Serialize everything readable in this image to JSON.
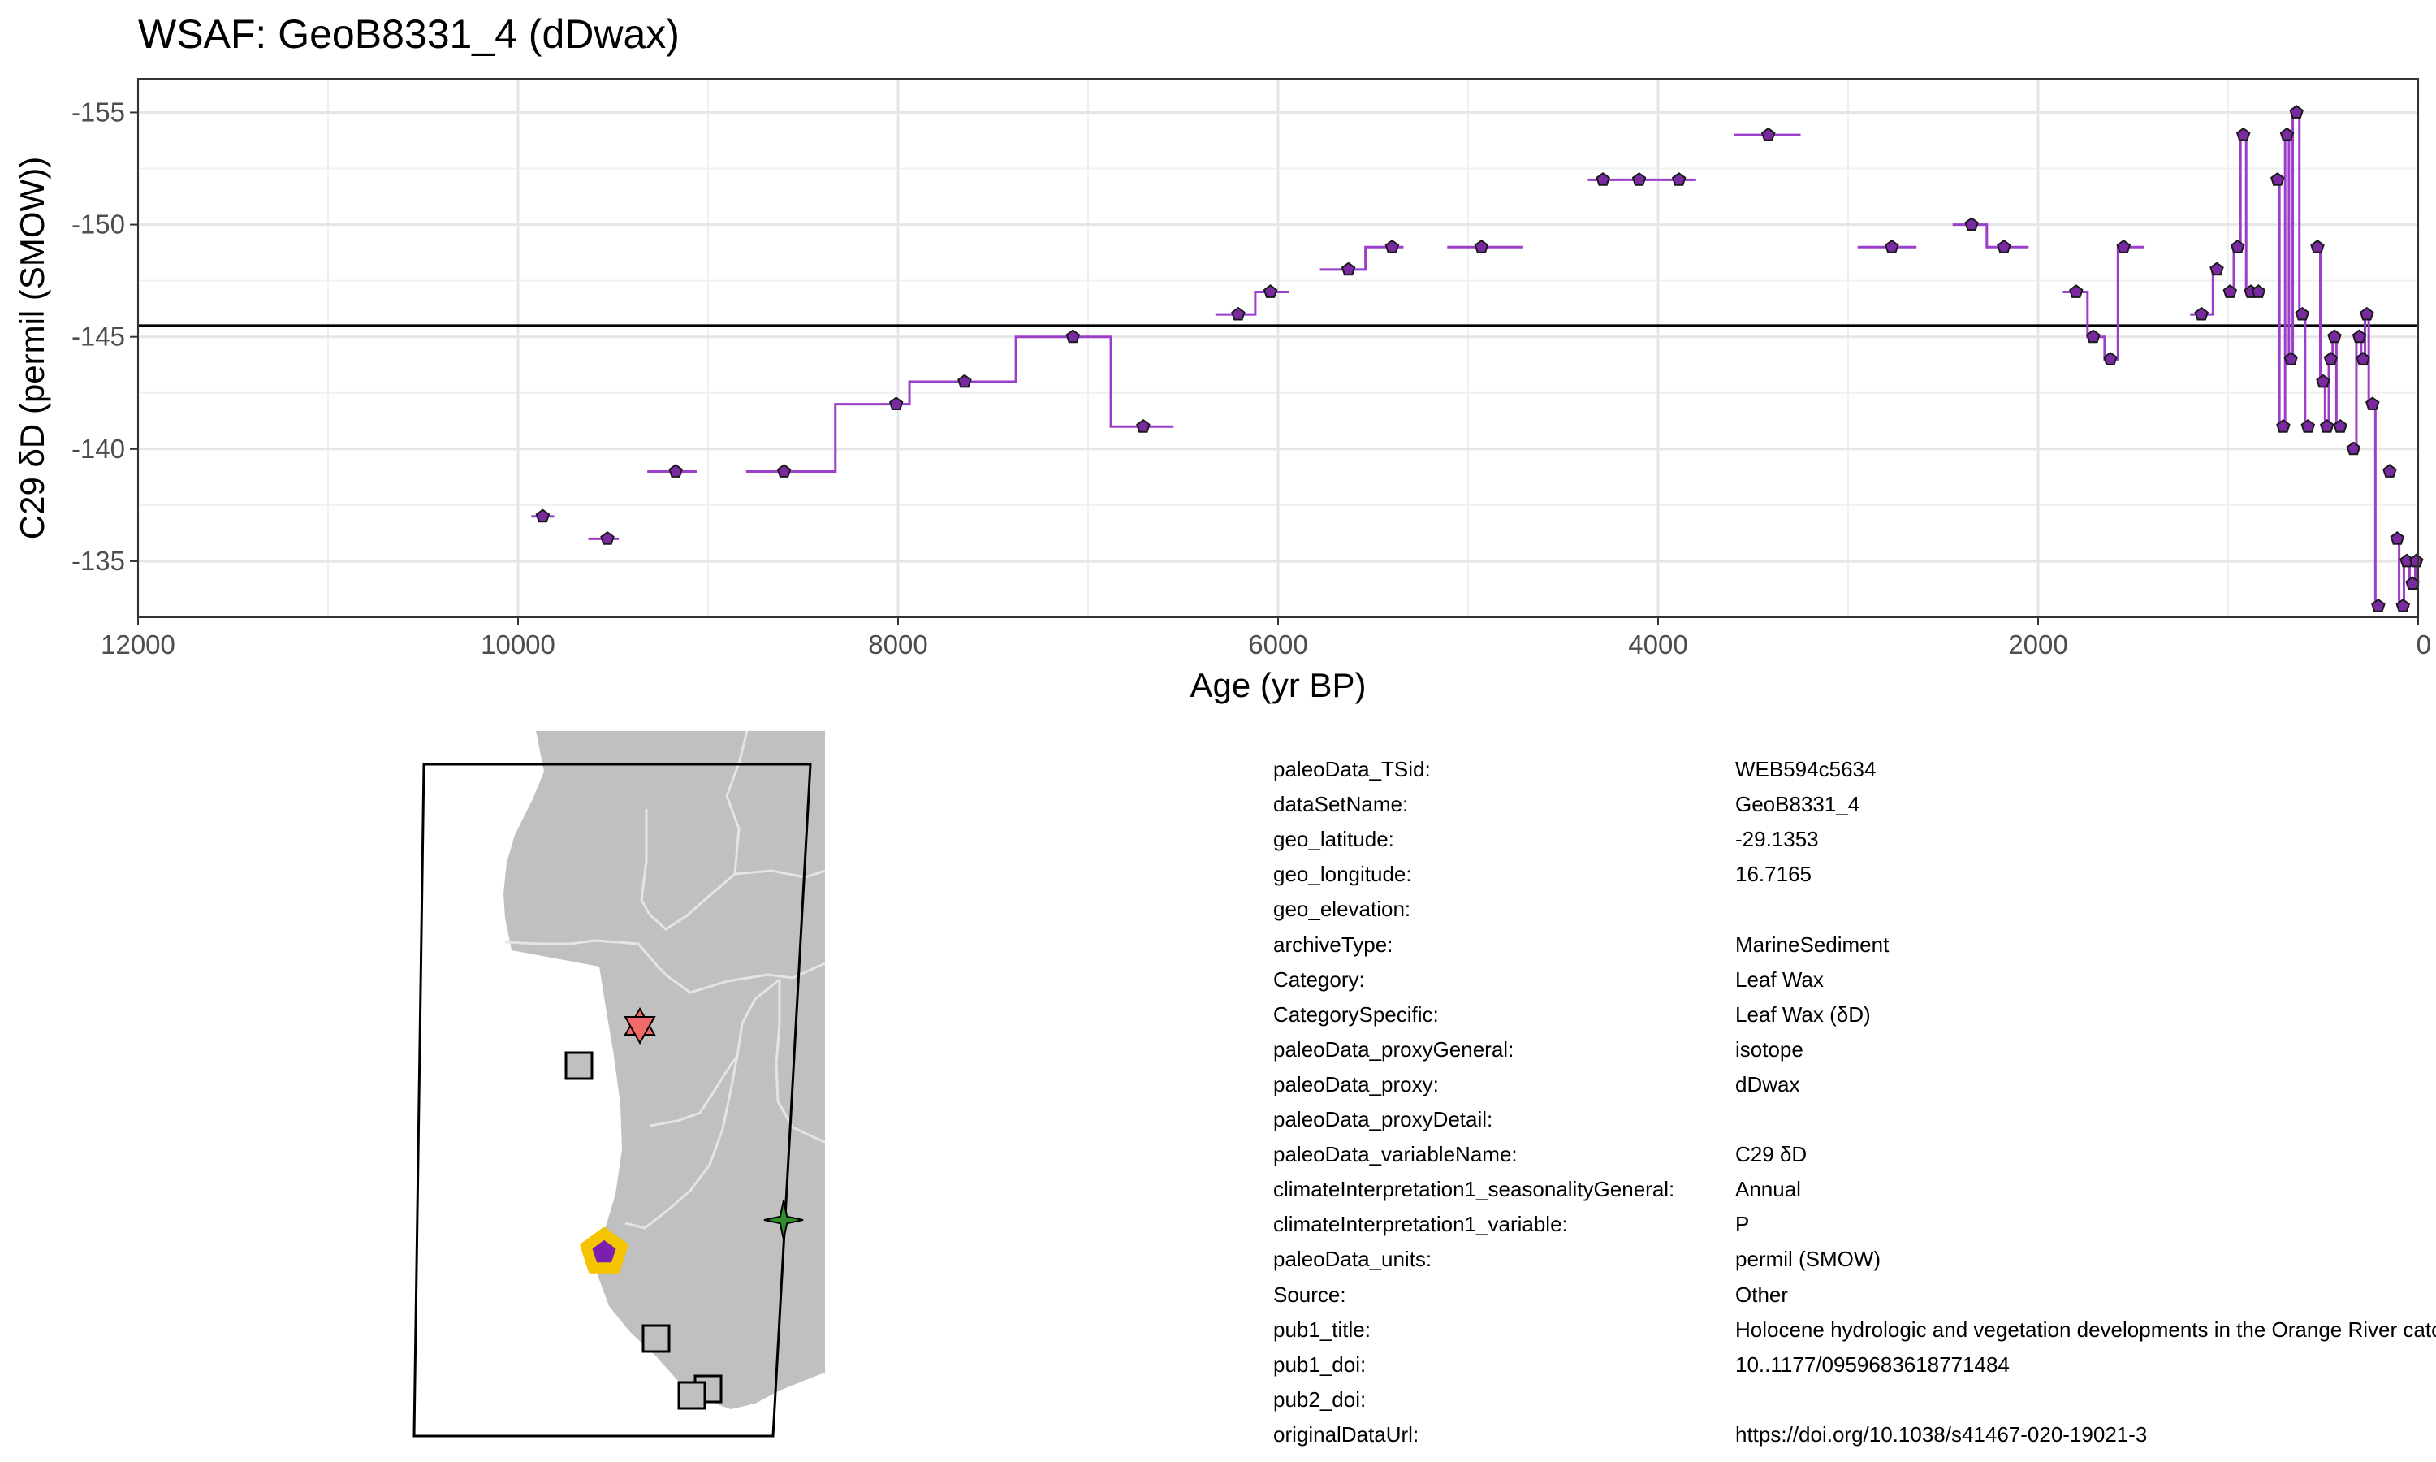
{
  "chart_data": {
    "type": "line",
    "title": "WSAF: GeoB8331_4 (dDwax)",
    "xlabel": "Age (yr BP)",
    "ylabel": "C29 δD (permil (SMOW))",
    "xlim": [
      12000,
      0
    ],
    "ylim": [
      -132.5,
      -156.5
    ],
    "x_reversed": true,
    "y_reversed": true,
    "x_ticks": [
      12000,
      10000,
      8000,
      6000,
      4000,
      2000,
      0
    ],
    "y_ticks": [
      -155,
      -150,
      -145,
      -140,
      -135
    ],
    "grid": true,
    "reference_line_y": -145.5,
    "series_color": "#9b3ec9",
    "marker_fill": "#7a2aa0",
    "steps": [
      {
        "x": 9870,
        "x0": 9930,
        "x1": 9810,
        "y": -137
      },
      {
        "x": 9530,
        "x0": 9630,
        "x1": 9470,
        "y": -136
      },
      {
        "x": 9170,
        "x0": 9320,
        "x1": 9060,
        "y": -139
      },
      {
        "x": 8600,
        "x0": 8800,
        "x1": 8330,
        "y": -139
      },
      {
        "x": 8010,
        "x0": 8330,
        "x1": 7940,
        "y": -142
      },
      {
        "x": 7650,
        "x0": 7940,
        "x1": 7380,
        "y": -143
      },
      {
        "x": 7080,
        "x0": 7380,
        "x1": 6880,
        "y": -145
      },
      {
        "x": 6710,
        "x0": 6880,
        "x1": 6550,
        "y": -141
      },
      {
        "x": 6210,
        "x0": 6330,
        "x1": 6120,
        "y": -146
      },
      {
        "x": 6040,
        "x0": 6120,
        "x1": 5940,
        "y": -147
      },
      {
        "x": 5630,
        "x0": 5780,
        "x1": 5540,
        "y": -148
      },
      {
        "x": 5400,
        "x0": 5540,
        "x1": 5340,
        "y": -149
      },
      {
        "x": 4930,
        "x0": 5110,
        "x1": 4710,
        "y": -149
      },
      {
        "x": 4290,
        "x0": 4370,
        "x1": 4180,
        "y": -152
      },
      {
        "x": 4100,
        "x0": 4180,
        "x1": 3990,
        "y": -152
      },
      {
        "x": 3890,
        "x0": 3990,
        "x1": 3800,
        "y": -152
      },
      {
        "x": 3420,
        "x0": 3600,
        "x1": 3250,
        "y": -154
      },
      {
        "x": 2770,
        "x0": 2950,
        "x1": 2640,
        "y": -149
      },
      {
        "x": 2350,
        "x0": 2450,
        "x1": 2270,
        "y": -150
      },
      {
        "x": 2180,
        "x0": 2270,
        "x1": 2050,
        "y": -149
      },
      {
        "x": 1800,
        "x0": 1870,
        "x1": 1740,
        "y": -147
      },
      {
        "x": 1710,
        "x0": 1740,
        "x1": 1650,
        "y": -145
      },
      {
        "x": 1620,
        "x0": 1650,
        "x1": 1580,
        "y": -144
      },
      {
        "x": 1550,
        "x0": 1580,
        "x1": 1440,
        "y": -149
      },
      {
        "x": 1140,
        "x0": 1200,
        "x1": 1080,
        "y": -146
      },
      {
        "x": 1060,
        "x0": 1080,
        "x1": 1040,
        "y": -148
      },
      {
        "x": 990,
        "x0": 1010,
        "x1": 970,
        "y": -147
      },
      {
        "x": 950,
        "x0": 970,
        "x1": 935,
        "y": -149
      },
      {
        "x": 920,
        "x0": 935,
        "x1": 905,
        "y": -154
      },
      {
        "x": 880,
        "x0": 905,
        "x1": 865,
        "y": -147
      },
      {
        "x": 840,
        "x0": 865,
        "x1": 815,
        "y": -147
      },
      {
        "x": 740,
        "x0": 760,
        "x1": 730,
        "y": -152
      },
      {
        "x": 710,
        "x0": 730,
        "x1": 700,
        "y": -141
      },
      {
        "x": 690,
        "x0": 700,
        "x1": 680,
        "y": -154
      },
      {
        "x": 670,
        "x0": 680,
        "x1": 660,
        "y": -144
      },
      {
        "x": 640,
        "x0": 660,
        "x1": 625,
        "y": -155
      },
      {
        "x": 610,
        "x0": 625,
        "x1": 595,
        "y": -146
      },
      {
        "x": 580,
        "x0": 595,
        "x1": 565,
        "y": -141
      },
      {
        "x": 530,
        "x0": 545,
        "x1": 515,
        "y": -149
      },
      {
        "x": 500,
        "x0": 515,
        "x1": 490,
        "y": -143
      },
      {
        "x": 480,
        "x0": 490,
        "x1": 470,
        "y": -141
      },
      {
        "x": 460,
        "x0": 470,
        "x1": 450,
        "y": -144
      },
      {
        "x": 440,
        "x0": 450,
        "x1": 430,
        "y": -145
      },
      {
        "x": 410,
        "x0": 430,
        "x1": 400,
        "y": -141
      },
      {
        "x": 340,
        "x0": 355,
        "x1": 325,
        "y": -140
      },
      {
        "x": 310,
        "x0": 325,
        "x1": 300,
        "y": -145
      },
      {
        "x": 290,
        "x0": 300,
        "x1": 280,
        "y": -144
      },
      {
        "x": 270,
        "x0": 280,
        "x1": 260,
        "y": -146
      },
      {
        "x": 240,
        "x0": 260,
        "x1": 225,
        "y": -142
      },
      {
        "x": 210,
        "x0": 225,
        "x1": 200,
        "y": -133
      },
      {
        "x": 150,
        "x0": 165,
        "x1": 135,
        "y": -139
      },
      {
        "x": 110,
        "x0": 125,
        "x1": 100,
        "y": -136
      },
      {
        "x": 80,
        "x0": 100,
        "x1": 75,
        "y": -133
      },
      {
        "x": 60,
        "x0": 75,
        "x1": 45,
        "y": -135
      },
      {
        "x": 30,
        "x0": 45,
        "x1": 15,
        "y": -134
      },
      {
        "x": 10,
        "x0": 15,
        "x1": 5,
        "y": -135
      }
    ]
  },
  "map": {
    "site_marker": "pentagon",
    "site_color": "#7a1fb0",
    "site_ring_color": "#f4c400",
    "land_color": "#c0c0c0",
    "other_sites": [
      {
        "shape": "hexagram",
        "color": "#f26a6a"
      },
      {
        "shape": "square",
        "color": "#c0c0c0"
      },
      {
        "shape": "star4",
        "color": "#2f8f2f"
      },
      {
        "shape": "square",
        "color": "#c0c0c0"
      },
      {
        "shape": "square",
        "color": "#c0c0c0"
      },
      {
        "shape": "square",
        "color": "#c0c0c0"
      }
    ]
  },
  "metadata": [
    {
      "key": "paleoData_TSid:",
      "value": "WEB594c5634"
    },
    {
      "key": "dataSetName:",
      "value": "GeoB8331_4"
    },
    {
      "key": "geo_latitude:",
      "value": "-29.1353"
    },
    {
      "key": "geo_longitude:",
      "value": "16.7165"
    },
    {
      "key": "geo_elevation:",
      "value": ""
    },
    {
      "key": "archiveType:",
      "value": "MarineSediment"
    },
    {
      "key": "Category:",
      "value": "Leaf Wax"
    },
    {
      "key": "CategorySpecific:",
      "value": "Leaf Wax (δD)"
    },
    {
      "key": "paleoData_proxyGeneral:",
      "value": "isotope"
    },
    {
      "key": "paleoData_proxy:",
      "value": "dDwax"
    },
    {
      "key": "paleoData_proxyDetail:",
      "value": ""
    },
    {
      "key": "paleoData_variableName:",
      "value": "C29 δD"
    },
    {
      "key": "climateInterpretation1_seasonalityGeneral:",
      "value": "Annual"
    },
    {
      "key": "climateInterpretation1_variable:",
      "value": "P"
    },
    {
      "key": "paleoData_units:",
      "value": "permil (SMOW)"
    },
    {
      "key": "Source:",
      "value": "Other"
    },
    {
      "key": "pub1_title:",
      "value": "Holocene hydrologic and vegetation developments in the Orange River catchment"
    },
    {
      "key": "pub1_doi:",
      "value": "10..1177/0959683618771484"
    },
    {
      "key": "pub2_doi:",
      "value": ""
    },
    {
      "key": "originalDataUrl:",
      "value": "https://doi.org/10.1038/s41467-020-19021-3"
    }
  ]
}
